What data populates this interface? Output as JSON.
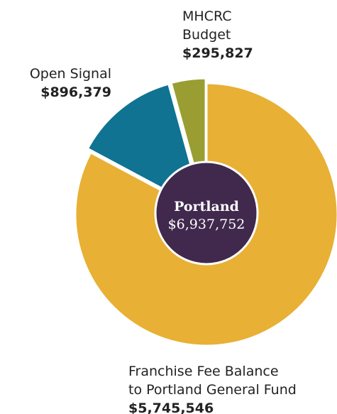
{
  "chart_data": {
    "type": "donut",
    "categories": [
      [
        "Franchise Fee Balance",
        "to Portland General Fund"
      ],
      [
        "Open Signal"
      ],
      [
        "MHCRC",
        "Budget"
      ]
    ],
    "values": [
      5745546,
      896379,
      295827
    ],
    "value_labels": [
      "$5,745,546",
      "$896,379",
      "$295,827"
    ],
    "colors": [
      "#e8b034",
      "#0f7391",
      "#9a9e32"
    ],
    "center_label": "Portland",
    "center_value": 6937752,
    "center_value_label": "$6,937,752",
    "center_color": "#40294d"
  }
}
